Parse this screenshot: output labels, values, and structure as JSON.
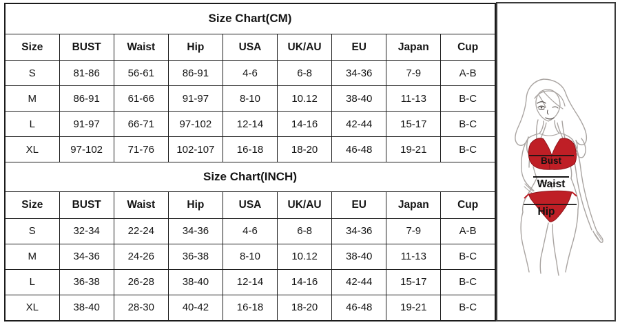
{
  "page": {
    "background": "#ffffff"
  },
  "tables": [
    {
      "title": "Size Chart(CM)",
      "headers": [
        "Size",
        "BUST",
        "Waist",
        "Hip",
        "USA",
        "UK/AU",
        "EU",
        "Japan",
        "Cup"
      ],
      "rows": [
        [
          "S",
          "81-86",
          "56-61",
          "86-91",
          "4-6",
          "6-8",
          "34-36",
          "7-9",
          "A-B"
        ],
        [
          "M",
          "86-91",
          "61-66",
          "91-97",
          "8-10",
          "10.12",
          "38-40",
          "11-13",
          "B-C"
        ],
        [
          "L",
          "91-97",
          "66-71",
          "97-102",
          "12-14",
          "14-16",
          "42-44",
          "15-17",
          "B-C"
        ],
        [
          "XL",
          "97-102",
          "71-76",
          "102-107",
          "16-18",
          "18-20",
          "46-48",
          "19-21",
          "B-C"
        ]
      ]
    },
    {
      "title": "Size Chart(INCH)",
      "headers": [
        "Size",
        "BUST",
        "Waist",
        "Hip",
        "USA",
        "UK/AU",
        "EU",
        "Japan",
        "Cup"
      ],
      "rows": [
        [
          "S",
          "32-34",
          "22-24",
          "34-36",
          "4-6",
          "6-8",
          "34-36",
          "7-9",
          "A-B"
        ],
        [
          "M",
          "34-36",
          "24-26",
          "36-38",
          "8-10",
          "10.12",
          "38-40",
          "11-13",
          "B-C"
        ],
        [
          "L",
          "36-38",
          "26-28",
          "38-40",
          "12-14",
          "14-16",
          "42-44",
          "15-17",
          "B-C"
        ],
        [
          "XL",
          "38-40",
          "28-30",
          "40-42",
          "16-18",
          "18-20",
          "46-48",
          "19-21",
          "B-C"
        ]
      ]
    }
  ],
  "figure": {
    "labels": {
      "bust": "Bust",
      "waist": "Waist",
      "hip": "Hip"
    },
    "colors": {
      "bikini_red": "#bf1f26",
      "bikini_red_dark": "#8e1319",
      "outline_gray": "#a9a4a1",
      "feature_gray": "#554f4c",
      "line_black": "#141414"
    }
  }
}
